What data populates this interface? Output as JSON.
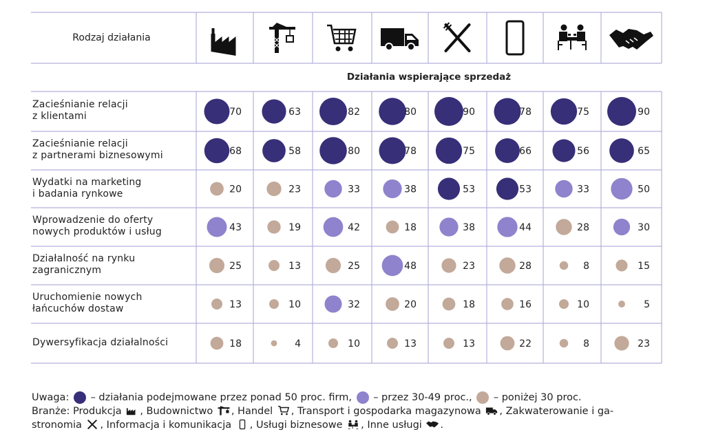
{
  "header": {
    "row_label": "Rodzaj działania"
  },
  "section_title": "Działania wspierające sprzedaż",
  "industries": [
    {
      "name": "Produkcja",
      "icon": "factory-icon"
    },
    {
      "name": "Budownictwo",
      "icon": "crane-icon"
    },
    {
      "name": "Handel",
      "icon": "shopping-cart-icon"
    },
    {
      "name": "Transport i gospodarka magazynowa",
      "icon": "truck-icon"
    },
    {
      "name": "Zakwaterowanie i gastronomia",
      "icon": "fork-knife-icon"
    },
    {
      "name": "Informacja i komunikacja",
      "icon": "smartphone-icon"
    },
    {
      "name": "Usługi biznesowe",
      "icon": "meeting-icon"
    },
    {
      "name": "Inne usługi",
      "icon": "handshake-icon"
    }
  ],
  "colors": {
    "high": "#372f78",
    "mid": "#8e83cc",
    "low": "#c2a999",
    "grid": "#b3b0dc",
    "text": "#222222"
  },
  "chart_data": {
    "type": "table",
    "categories": [
      "Produkcja",
      "Budownictwo",
      "Handel",
      "Transport i gospodarka magazynowa",
      "Zakwaterowanie i gastronomia",
      "Informacja i komunikacja",
      "Usługi biznesowe",
      "Inne usługi"
    ],
    "rows": [
      {
        "label": "Zacieśnianie relacji\nz klientami",
        "values": [
          70,
          63,
          82,
          80,
          90,
          78,
          75,
          90
        ]
      },
      {
        "label": "Zacieśnianie relacji\nz partnerami biznesowymi",
        "values": [
          68,
          58,
          80,
          78,
          75,
          66,
          56,
          65
        ]
      },
      {
        "label": "Wydatki na marketing\ni badania rynkowe",
        "values": [
          20,
          23,
          33,
          38,
          53,
          53,
          33,
          50
        ]
      },
      {
        "label": "Wprowadzenie do oferty\nnowych produktów i usług",
        "values": [
          43,
          19,
          42,
          18,
          38,
          44,
          28,
          30
        ]
      },
      {
        "label": "Działalność na rynku\nzagranicznym",
        "values": [
          25,
          13,
          25,
          48,
          23,
          28,
          8,
          15
        ]
      },
      {
        "label": "Uruchomienie nowych\nłańcuchów dostaw",
        "values": [
          13,
          10,
          32,
          20,
          18,
          16,
          10,
          5
        ]
      },
      {
        "label": "Dywersyfikacja działalności",
        "values": [
          18,
          4,
          10,
          13,
          13,
          22,
          8,
          23
        ]
      }
    ]
  },
  "legend": {
    "prefix": "Uwaga:",
    "high": "– działania podejmowane przez ponad 50 proc. firm,",
    "mid": "– przez 30-49 proc.,",
    "low": "– poniżej 30 proc.",
    "branze_prefix": "Branże: Produkcja",
    "b1": ", Budownictwo",
    "b2": ", Handel",
    "b3": ", Transport i gospodarka magazynowa",
    "b4": ", Zakwaterowanie i ga-",
    "b5": "stronomia",
    "b6": ", Informacja i komunikacja",
    "b7": ", Usługi biznesowe",
    "b8": ", Inne usługi",
    "b9": "."
  }
}
